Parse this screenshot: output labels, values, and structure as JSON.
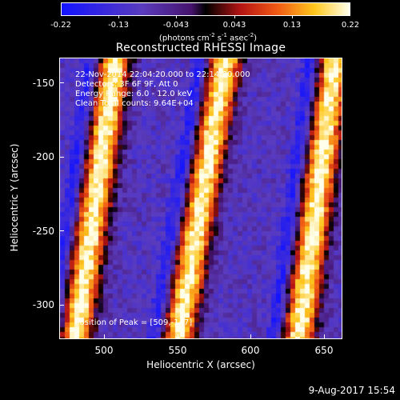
{
  "colorbar": {
    "ticks": [
      "-0.22",
      "-0.13",
      "-0.043",
      "0.043",
      "0.13",
      "0.22"
    ],
    "unit_prefix": "(photons cm",
    "unit_exp1": "-2",
    "unit_mid1": " s",
    "unit_exp2": "-1",
    "unit_mid2": " asec",
    "unit_exp3": "-2",
    "unit_suffix": ")"
  },
  "plot": {
    "title": "Reconstructed RHESSI Image",
    "xlabel": "Heliocentric X (arcsec)",
    "ylabel": "Heliocentric Y (arcsec)",
    "xticks": [
      "500",
      "550",
      "600",
      "650"
    ],
    "yticks": [
      "-150",
      "-200",
      "-250",
      "-300"
    ],
    "info_lines": [
      "22-Nov-2014 22:04:20.000 to 22:14:20.000",
      "Detectors: 3F 6F 9F, Att 0",
      "Energy Range: 6.0 - 12.0 keV",
      "Clean   Total counts: 9.64E+04"
    ],
    "peak_text": "Position of Peak = [509,-147]"
  },
  "footer": {
    "timestamp": "9-Aug-2017 15:54"
  },
  "colors": {
    "background": "#000000",
    "foreground": "#ffffff"
  },
  "chart_data": {
    "type": "heatmap",
    "title": "Reconstructed RHESSI Image",
    "xlabel": "Heliocentric X (arcsec)",
    "ylabel": "Heliocentric Y (arcsec)",
    "xlim": [
      469,
      661
    ],
    "ylim": [
      -324,
      -133
    ],
    "colorbar_range": [
      -0.22,
      0.22
    ],
    "colormap": "blue-purple-black-red-yellow-white",
    "peak": {
      "x": 509,
      "y": -147
    },
    "bright_ridges": [
      {
        "x_at_top": 505,
        "x_at_bottom": 478
      },
      {
        "x_at_top": 580,
        "x_at_bottom": 548
      },
      {
        "x_at_top": 655,
        "x_at_bottom": 630
      }
    ]
  }
}
